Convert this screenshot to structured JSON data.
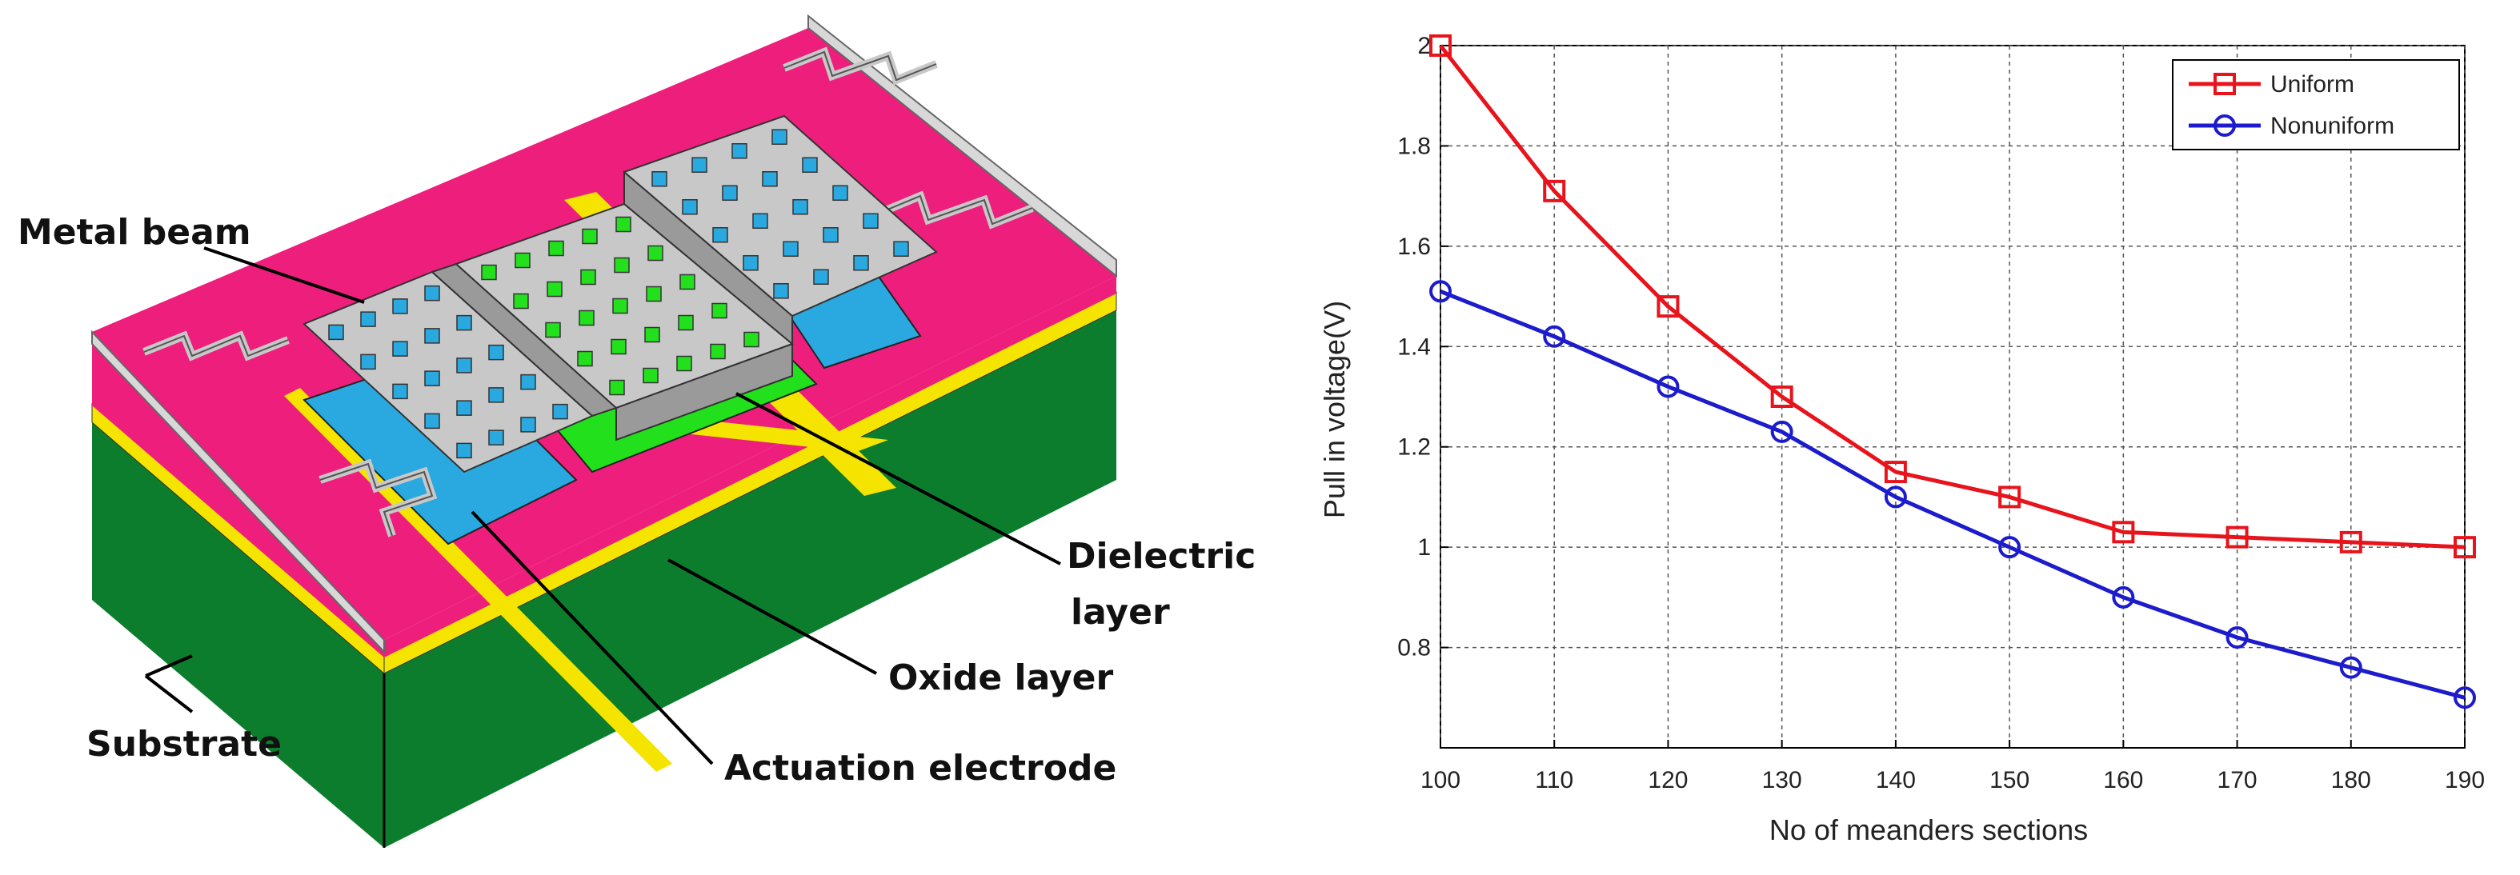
{
  "diagram": {
    "labels": {
      "metal_beam": "Metal beam",
      "dielectric_line1": "Dielectric",
      "dielectric_line2": "layer",
      "oxide_layer": "Oxide layer",
      "substrate": "Substrate",
      "actuation_electrode": "Actuation electrode"
    },
    "colors": {
      "substrate": "#0b7d2c",
      "top_layer": "#ee1f7c",
      "oxide": "#f4e400",
      "electrode": "#29a9e0",
      "dielectric": "#22e01c",
      "beam": "#c8c8c8"
    }
  },
  "chart_data": {
    "type": "line",
    "x": [
      100,
      110,
      120,
      130,
      140,
      150,
      160,
      170,
      180,
      190
    ],
    "xticks": [
      "100",
      "110",
      "120",
      "130",
      "140",
      "150",
      "160",
      "170",
      "180",
      "190"
    ],
    "yticks": [
      "0.8",
      "1",
      "1.2",
      "1.4",
      "1.6",
      "1.8",
      "2"
    ],
    "xlim": [
      100,
      190
    ],
    "ylim": [
      0.6,
      2.0
    ],
    "xlabel": "No of meanders sections",
    "ylabel": "Pull in voltage(V)",
    "grid": true,
    "legend_position": "top-right",
    "series": [
      {
        "name": "Uniform",
        "color": "#e8141c",
        "marker": "square",
        "values": [
          2.0,
          1.71,
          1.48,
          1.3,
          1.15,
          1.1,
          1.03,
          1.02,
          1.01,
          1.0
        ]
      },
      {
        "name": "Nonuniform",
        "color": "#1c1ccc",
        "marker": "circle",
        "values": [
          1.51,
          1.42,
          1.32,
          1.23,
          1.1,
          1.0,
          0.9,
          0.82,
          0.76,
          0.7
        ]
      }
    ]
  }
}
